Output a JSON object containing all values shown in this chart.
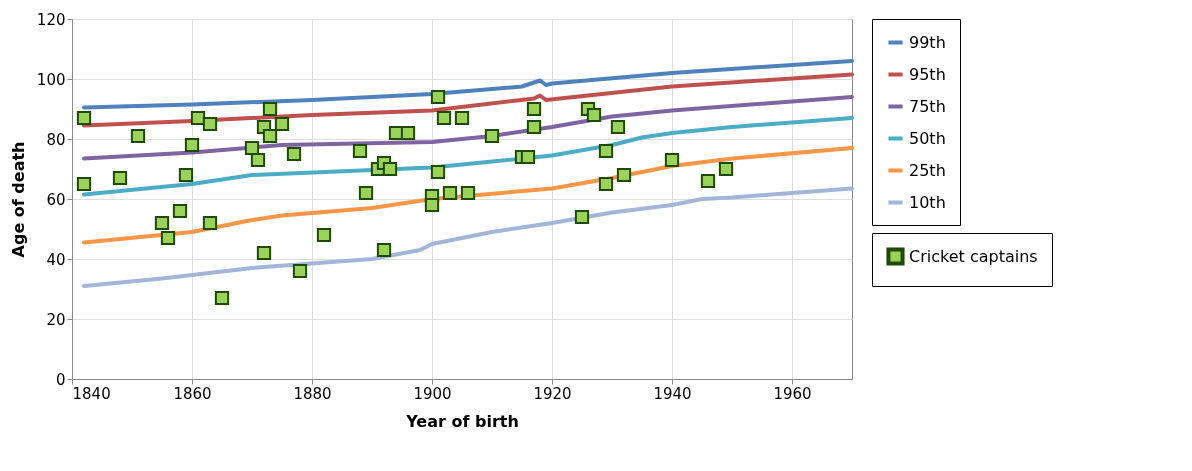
{
  "chart_data": {
    "type": "scatter",
    "xlabel": "Year of birth",
    "ylabel": "Age of death",
    "xlim": [
      1840,
      1970
    ],
    "xticks": [
      1840,
      1860,
      1880,
      1900,
      1920,
      1940,
      1960
    ],
    "ylim": [
      0,
      120
    ],
    "yticks": [
      0,
      20,
      40,
      60,
      80,
      100,
      120
    ],
    "grid": true,
    "legend": "right",
    "series": [
      {
        "name": "Cricket captains",
        "marker": "square",
        "color": "#9bd25a",
        "x": [
          1842,
          1842,
          1848,
          1851,
          1861,
          1863,
          1860,
          1859,
          1858,
          1855,
          1856,
          1863,
          1865,
          1873,
          1872,
          1875,
          1873,
          1870,
          1871,
          1877,
          1888,
          1872,
          1882,
          1878,
          1901,
          1902,
          1905,
          1894,
          1896,
          1891,
          1892,
          1893,
          1889,
          1901,
          1900,
          1900,
          1903,
          1906,
          1892,
          1910,
          1917,
          1917,
          1915,
          1916,
          1926,
          1927,
          1931,
          1929,
          1929,
          1932,
          1925,
          1940,
          1946,
          1949
        ],
        "values": [
          87,
          65,
          67,
          81,
          87,
          85,
          78,
          68,
          56,
          52,
          47,
          52,
          27,
          90,
          84,
          85,
          81,
          77,
          73,
          75,
          76,
          42,
          48,
          36,
          94,
          87,
          87,
          82,
          82,
          70,
          72,
          70,
          62,
          69,
          61,
          58,
          62,
          62,
          43,
          81,
          90,
          84,
          74,
          74,
          90,
          88,
          84,
          76,
          65,
          68,
          54,
          73,
          66,
          70
        ]
      },
      {
        "name": "99th",
        "type": "line",
        "color": "#4f81bd",
        "x": [
          1842,
          1860,
          1880,
          1900,
          1915,
          1918,
          1919,
          1920,
          1940,
          1970
        ],
        "values": [
          90.5,
          91.5,
          93,
          95,
          97.5,
          99.5,
          98,
          98.5,
          102,
          106
        ]
      },
      {
        "name": "95th",
        "type": "line",
        "color": "#c0504d",
        "x": [
          1842,
          1860,
          1880,
          1900,
          1917,
          1918,
          1919,
          1940,
          1970
        ],
        "values": [
          84.5,
          86,
          88,
          89.5,
          93.5,
          94.5,
          93,
          97.5,
          101.5
        ]
      },
      {
        "name": "75th",
        "type": "line",
        "color": "#8064a2",
        "x": [
          1842,
          1860,
          1875,
          1900,
          1910,
          1920,
          1930,
          1940,
          1970
        ],
        "values": [
          73.5,
          75.5,
          78,
          79,
          81,
          84,
          87.5,
          89.5,
          94
        ]
      },
      {
        "name": "50th",
        "type": "line",
        "color": "#4bacc6",
        "x": [
          1842,
          1860,
          1870,
          1900,
          1920,
          1930,
          1935,
          1940,
          1950,
          1970
        ],
        "values": [
          61.5,
          65,
          68,
          70.5,
          74.5,
          78,
          80.5,
          82,
          84,
          87
        ]
      },
      {
        "name": "25th",
        "type": "line",
        "color": "#f79646",
        "x": [
          1842,
          1860,
          1870,
          1875,
          1890,
          1900,
          1920,
          1930,
          1940,
          1950,
          1970
        ],
        "values": [
          45.5,
          49,
          53,
          54.5,
          57,
          60,
          63.5,
          67,
          71,
          73.5,
          77
        ]
      },
      {
        "name": "10th",
        "type": "line",
        "color": "#a1b6d8",
        "x": [
          1842,
          1855,
          1870,
          1890,
          1898,
          1900,
          1910,
          1920,
          1930,
          1940,
          1945,
          1950,
          1970
        ],
        "values": [
          31,
          33.5,
          37,
          40,
          43,
          45,
          49,
          52,
          55.5,
          58,
          60,
          60.5,
          63.5
        ]
      }
    ]
  }
}
